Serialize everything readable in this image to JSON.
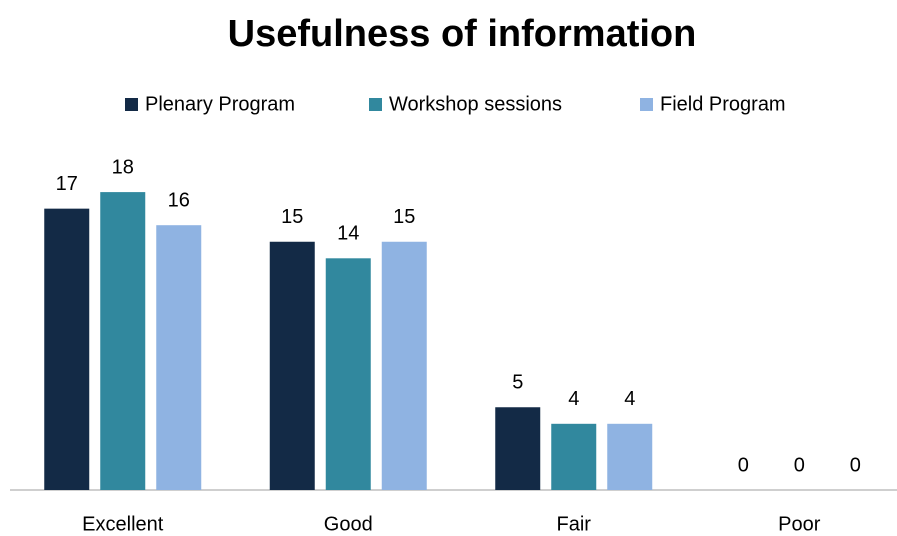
{
  "chart_data": {
    "type": "bar",
    "title": "Usefulness of information",
    "categories": [
      "Excellent",
      "Good",
      "Fair",
      "Poor"
    ],
    "series": [
      {
        "name": "Plenary Program",
        "color": "#132a46",
        "values": [
          17,
          15,
          5,
          0
        ]
      },
      {
        "name": "Workshop sessions",
        "color": "#31889e",
        "values": [
          18,
          14,
          4,
          0
        ]
      },
      {
        "name": "Field Program",
        "color": "#8fb3e2",
        "values": [
          16,
          15,
          4,
          0
        ]
      }
    ],
    "legend": "top"
  }
}
